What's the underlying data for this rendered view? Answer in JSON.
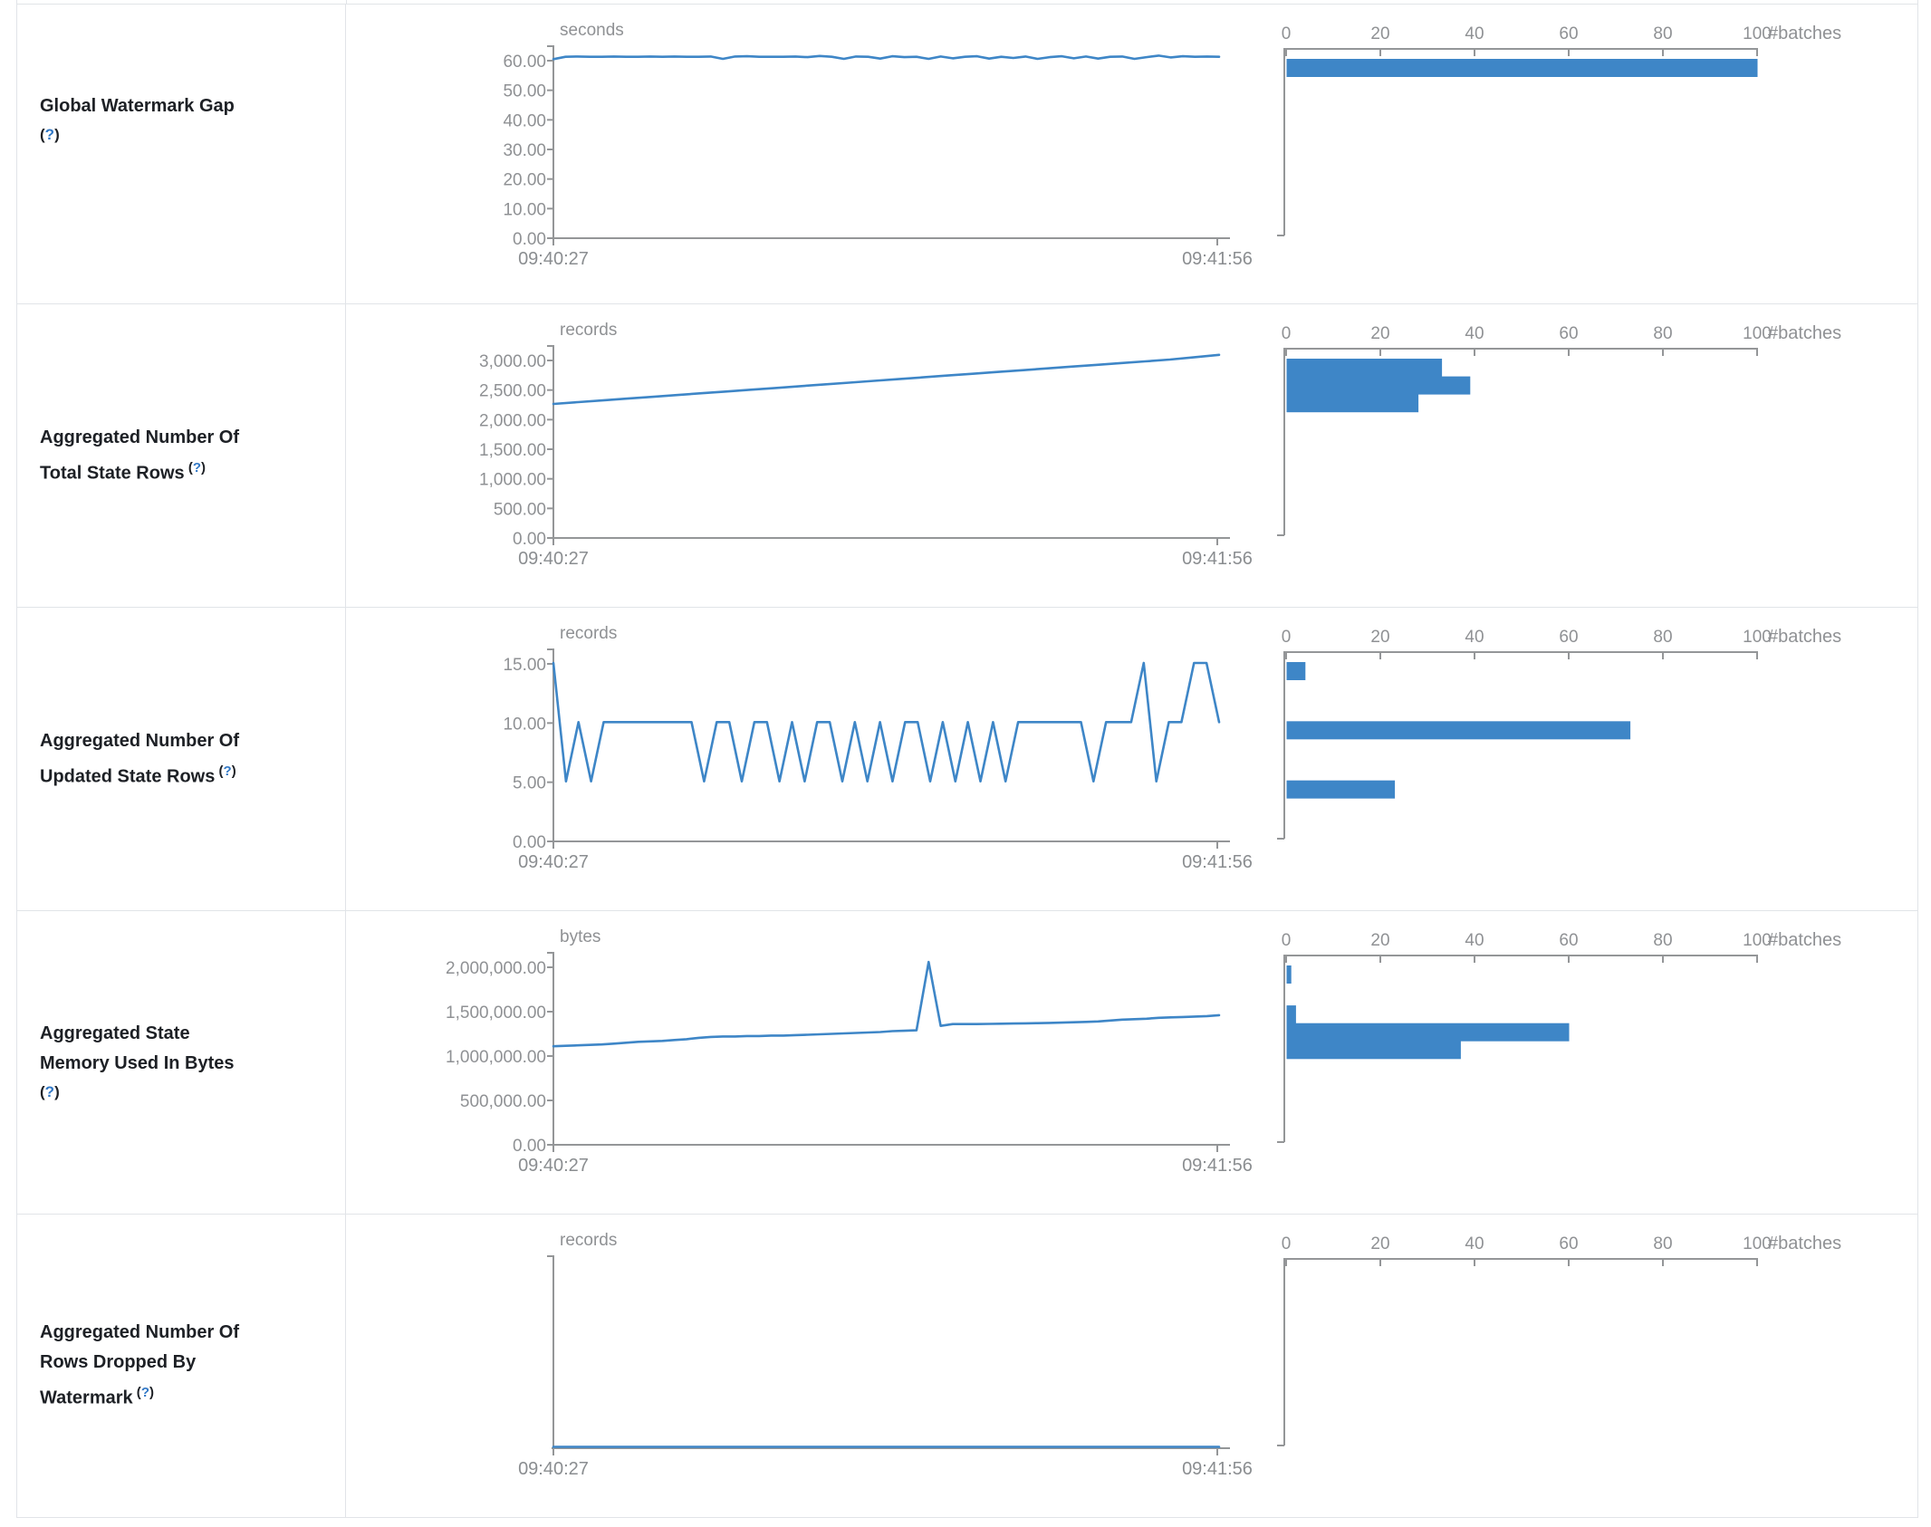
{
  "help_marker": {
    "open": "(",
    "q": "?",
    "close": ")"
  },
  "time_axis": {
    "start": "09:40:27",
    "end": "09:41:56"
  },
  "batches_axis": {
    "tick_labels": [
      "0",
      "20",
      "40",
      "60",
      "80",
      "100"
    ],
    "tick_values": [
      0,
      20,
      40,
      60,
      80,
      100
    ],
    "unit_label": "#batches",
    "max": 100
  },
  "colors": {
    "accent_blue": "#3e86c7",
    "help_blue": "#3178c6",
    "axis_gray": "#949698",
    "text_gray": "#8f9194",
    "label_dark": "#1d2025",
    "border": "#e1e4e8"
  },
  "rows": [
    {
      "metric": "Global Watermark Gap",
      "label_lines": [
        "Global Watermark Gap"
      ],
      "help_inline": false
    },
    {
      "metric": "Aggregated Number Of Total State Rows",
      "label_lines": [
        "Aggregated Number Of",
        "Total State Rows"
      ],
      "help_inline": true
    },
    {
      "metric": "Aggregated Number Of Updated State Rows",
      "label_lines": [
        "Aggregated Number Of",
        "Updated State Rows"
      ],
      "help_inline": true
    },
    {
      "metric": "Aggregated State Memory Used In Bytes",
      "label_lines": [
        "Aggregated State",
        "Memory Used In Bytes"
      ],
      "help_inline": false
    },
    {
      "metric": "Aggregated Number Of Rows Dropped By Watermark",
      "label_lines": [
        "Aggregated Number Of",
        "Rows Dropped By",
        "Watermark"
      ],
      "help_inline": true
    }
  ],
  "chart_data": [
    {
      "type": "line",
      "title": "seconds",
      "x_start": "09:40:27",
      "x_end": "09:41:56",
      "y_tick_labels": [
        "60.00",
        "50.00",
        "40.00",
        "30.00",
        "20.00",
        "10.00",
        "0.00"
      ],
      "y_tick_values": [
        60,
        50,
        40,
        30,
        20,
        10,
        0
      ],
      "values": [
        60.2,
        61.0,
        61.1,
        61.0,
        61.0,
        61.1,
        61.0,
        61.0,
        61.1,
        61.0,
        61.1,
        61.0,
        61.0,
        61.1,
        60.3,
        61.1,
        61.2,
        61.0,
        61.0,
        61.0,
        61.1,
        60.9,
        61.3,
        61.0,
        60.3,
        61.1,
        61.0,
        60.4,
        61.2,
        60.9,
        61.0,
        60.3,
        61.1,
        60.5,
        61.0,
        61.2,
        60.4,
        61.0,
        60.6,
        61.1,
        60.3,
        60.9,
        61.2,
        60.5,
        61.1,
        60.4,
        61.0,
        61.1,
        60.3,
        60.9,
        61.4,
        60.8,
        61.2,
        61.0,
        61.1,
        61.0
      ],
      "histogram": {
        "type": "bar",
        "orientation": "horizontal",
        "axis_label": "#batches",
        "x_ticks": [
          0,
          20,
          40,
          60,
          80,
          100
        ],
        "buckets": [
          {
            "value": 60,
            "batches": 100
          }
        ]
      }
    },
    {
      "type": "line",
      "title": "records",
      "x_start": "09:40:27",
      "x_end": "09:41:56",
      "y_tick_labels": [
        "3,000.00",
        "2,500.00",
        "2,000.00",
        "1,500.00",
        "1,000.00",
        "500.00",
        "0.00"
      ],
      "y_tick_values": [
        3000,
        2500,
        2000,
        1500,
        1000,
        500,
        0
      ],
      "values": [
        2250,
        2280,
        2310,
        2340,
        2370,
        2400,
        2430,
        2460,
        2490,
        2520,
        2550,
        2580,
        2610,
        2640,
        2670,
        2700,
        2730,
        2760,
        2790,
        2820,
        2850,
        2880,
        2910,
        2940,
        2970,
        3000,
        3040,
        3080
      ],
      "histogram": {
        "type": "bar",
        "orientation": "horizontal",
        "axis_label": "#batches",
        "x_ticks": [
          0,
          20,
          40,
          60,
          80,
          100
        ],
        "buckets": [
          {
            "value": 3000,
            "batches": 33
          },
          {
            "value": 2700,
            "batches": 39
          },
          {
            "value": 2400,
            "batches": 28
          }
        ]
      }
    },
    {
      "type": "line",
      "title": "records",
      "x_start": "09:40:27",
      "x_end": "09:41:56",
      "y_tick_labels": [
        "15.00",
        "10.00",
        "5.00",
        "0.00"
      ],
      "y_tick_values": [
        15,
        10,
        5,
        0
      ],
      "values": [
        15,
        5,
        10,
        5,
        10,
        10,
        10,
        10,
        10,
        10,
        10,
        10,
        5,
        10,
        10,
        5,
        10,
        10,
        5,
        10,
        5,
        10,
        10,
        5,
        10,
        5,
        10,
        5,
        10,
        10,
        5,
        10,
        5,
        10,
        5,
        10,
        5,
        10,
        10,
        10,
        10,
        10,
        10,
        5,
        10,
        10,
        10,
        15,
        5,
        10,
        10,
        15,
        15,
        10
      ],
      "histogram": {
        "type": "bar",
        "orientation": "horizontal",
        "axis_label": "#batches",
        "x_ticks": [
          0,
          20,
          40,
          60,
          80,
          100
        ],
        "buckets": [
          {
            "value": 15,
            "batches": 4
          },
          {
            "value": 10,
            "batches": 73
          },
          {
            "value": 5,
            "batches": 23
          }
        ]
      }
    },
    {
      "type": "line",
      "title": "bytes",
      "x_start": "09:40:27",
      "x_end": "09:41:56",
      "y_tick_labels": [
        "2,000,000.00",
        "1,500,000.00",
        "1,000,000.00",
        "500,000.00",
        "0.00"
      ],
      "y_tick_values": [
        2000000,
        1500000,
        1000000,
        500000,
        0
      ],
      "values": [
        1100000,
        1105000,
        1110000,
        1115000,
        1120000,
        1130000,
        1140000,
        1150000,
        1155000,
        1160000,
        1170000,
        1180000,
        1195000,
        1205000,
        1210000,
        1210000,
        1215000,
        1215000,
        1220000,
        1220000,
        1225000,
        1230000,
        1235000,
        1240000,
        1245000,
        1250000,
        1255000,
        1260000,
        1270000,
        1275000,
        1280000,
        2050000,
        1330000,
        1350000,
        1350000,
        1350000,
        1352000,
        1354000,
        1356000,
        1358000,
        1360000,
        1363000,
        1366000,
        1370000,
        1375000,
        1380000,
        1390000,
        1400000,
        1405000,
        1410000,
        1420000,
        1425000,
        1430000,
        1435000,
        1440000,
        1450000
      ],
      "histogram": {
        "type": "bar",
        "orientation": "horizontal",
        "axis_label": "#batches",
        "x_ticks": [
          0,
          20,
          40,
          60,
          80,
          100
        ],
        "buckets": [
          {
            "value": 2000000,
            "batches": 1
          },
          {
            "value": 1550000,
            "batches": 2
          },
          {
            "value": 1350000,
            "batches": 60
          },
          {
            "value": 1150000,
            "batches": 37
          }
        ]
      }
    },
    {
      "type": "line",
      "title": "records",
      "x_start": "09:40:27",
      "x_end": "09:41:56",
      "y_tick_labels": [],
      "y_tick_values": [],
      "values": [
        0,
        0,
        0,
        0,
        0,
        0,
        0,
        0,
        0,
        0,
        0,
        0,
        0,
        0,
        0,
        0,
        0,
        0,
        0,
        0
      ],
      "histogram": {
        "type": "bar",
        "orientation": "horizontal",
        "axis_label": "#batches",
        "x_ticks": [
          0,
          20,
          40,
          60,
          80,
          100
        ],
        "buckets": []
      }
    }
  ]
}
